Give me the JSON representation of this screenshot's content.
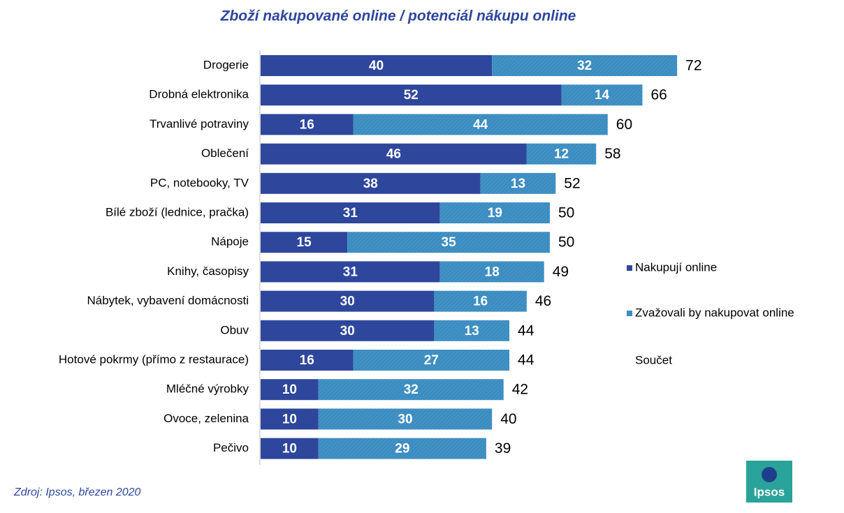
{
  "chart_data": {
    "type": "stacked-barh",
    "title": "Zboží nakupované online / potenciál nákupu online",
    "categories": [
      "Drogerie",
      "Drobná elektronika",
      "Trvanlivé potraviny",
      "Oblečení",
      "PC, notebooky, TV",
      "Bílé zboží (lednice, pračka)",
      "Nápoje",
      "Knihy, časopisy",
      "Nábytek, vybavení domácnosti",
      "Obuv",
      "Hotové pokrmy (přímo z restaurace)",
      "Mléčné výrobky",
      "Ovoce, zelenina",
      "Pečivo"
    ],
    "series": [
      {
        "name": "Nakupují online",
        "color": "#2e479c",
        "values": [
          40,
          52,
          16,
          46,
          38,
          31,
          15,
          31,
          30,
          30,
          16,
          10,
          10,
          10
        ]
      },
      {
        "name": "Zvažovali by nakupovat online",
        "color": "#3b8cc0",
        "values": [
          32,
          14,
          44,
          12,
          13,
          19,
          35,
          18,
          16,
          13,
          27,
          32,
          30,
          29
        ]
      }
    ],
    "totals": {
      "name": "Součet",
      "values": [
        72,
        66,
        60,
        58,
        52,
        50,
        50,
        49,
        46,
        44,
        44,
        42,
        40,
        39
      ]
    },
    "source": "Zdroj: Ipsos, březen 2020",
    "logo": "Ipsos"
  }
}
